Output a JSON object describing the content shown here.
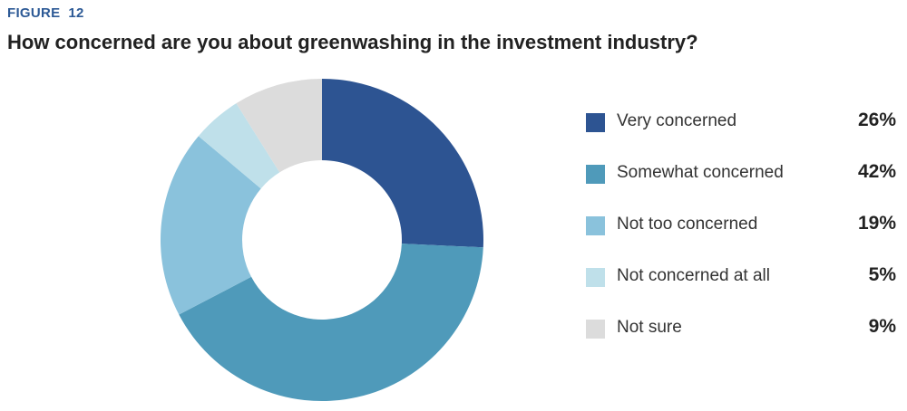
{
  "figure_label": "FIGURE  12",
  "chart_data": {
    "type": "pie",
    "title": "How concerned are you about greenwashing in the investment industry?",
    "categories": [
      "Very concerned",
      "Somewhat concerned",
      "Not too concerned",
      "Not concerned at all",
      "Not sure"
    ],
    "values": [
      26,
      42,
      19,
      5,
      9
    ],
    "value_labels": [
      "26%",
      "42%",
      "19%",
      "5%",
      "9%"
    ],
    "colors": [
      "#2d5492",
      "#4f9aba",
      "#8ac2dc",
      "#bfe0ea",
      "#dcdcdc"
    ],
    "legend_position": "right"
  }
}
